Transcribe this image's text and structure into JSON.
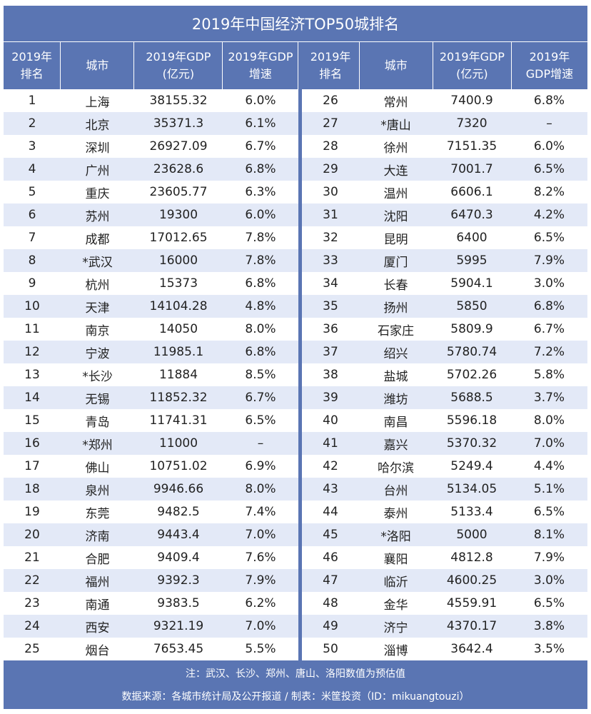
{
  "title": "2019年中国经济TOP50城排名",
  "headers": [
    "2019年\n排名",
    "城市",
    "2019年GDP\n(亿元)",
    "2019年GDP\n增速",
    "2019年\n排名",
    "城市",
    "2019年GDP\n(亿元)",
    "2019年\nGDP增速"
  ],
  "rows": [
    {
      "left": [
        "1",
        "上海",
        "38155.32",
        "6.0%"
      ],
      "right": [
        "26",
        "常州",
        "7400.9",
        "6.8%"
      ]
    },
    {
      "left": [
        "2",
        "北京",
        "35371.3",
        "6.1%"
      ],
      "right": [
        "27",
        "*唐山",
        "7320",
        "–"
      ]
    },
    {
      "left": [
        "3",
        "深圳",
        "26927.09",
        "6.7%"
      ],
      "right": [
        "28",
        "徐州",
        "7151.35",
        "6.0%"
      ]
    },
    {
      "left": [
        "4",
        "广州",
        "23628.6",
        "6.8%"
      ],
      "right": [
        "29",
        "大连",
        "7001.7",
        "6.5%"
      ]
    },
    {
      "left": [
        "5",
        "重庆",
        "23605.77",
        "6.3%"
      ],
      "right": [
        "30",
        "温州",
        "6606.1",
        "8.2%"
      ]
    },
    {
      "left": [
        "6",
        "苏州",
        "19300",
        "6.0%"
      ],
      "right": [
        "31",
        "沈阳",
        "6470.3",
        "4.2%"
      ]
    },
    {
      "left": [
        "7",
        "成都",
        "17012.65",
        "7.8%"
      ],
      "right": [
        "32",
        "昆明",
        "6400",
        "6.5%"
      ]
    },
    {
      "left": [
        "8",
        "*武汉",
        "16000",
        "7.8%"
      ],
      "right": [
        "33",
        "厦门",
        "5995",
        "7.9%"
      ]
    },
    {
      "left": [
        "9",
        "杭州",
        "15373",
        "6.8%"
      ],
      "right": [
        "34",
        "长春",
        "5904.1",
        "3.0%"
      ]
    },
    {
      "left": [
        "10",
        "天津",
        "14104.28",
        "4.8%"
      ],
      "right": [
        "35",
        "扬州",
        "5850",
        "6.8%"
      ]
    },
    {
      "left": [
        "11",
        "南京",
        "14050",
        "8.0%"
      ],
      "right": [
        "36",
        "石家庄",
        "5809.9",
        "6.7%"
      ]
    },
    {
      "left": [
        "12",
        "宁波",
        "11985.1",
        "6.8%"
      ],
      "right": [
        "37",
        "绍兴",
        "5780.74",
        "7.2%"
      ]
    },
    {
      "left": [
        "13",
        "*长沙",
        "11884",
        "8.5%"
      ],
      "right": [
        "38",
        "盐城",
        "5702.26",
        "5.8%"
      ]
    },
    {
      "left": [
        "14",
        "无锡",
        "11852.32",
        "6.7%"
      ],
      "right": [
        "39",
        "潍坊",
        "5688.5",
        "3.7%"
      ]
    },
    {
      "left": [
        "15",
        "青岛",
        "11741.31",
        "6.5%"
      ],
      "right": [
        "40",
        "南昌",
        "5596.18",
        "8.0%"
      ]
    },
    {
      "left": [
        "16",
        "*郑州",
        "11000",
        "–"
      ],
      "right": [
        "41",
        "嘉兴",
        "5370.32",
        "7.0%"
      ]
    },
    {
      "left": [
        "17",
        "佛山",
        "10751.02",
        "6.9%"
      ],
      "right": [
        "42",
        "哈尔滨",
        "5249.4",
        "4.4%"
      ]
    },
    {
      "left": [
        "18",
        "泉州",
        "9946.66",
        "8.0%"
      ],
      "right": [
        "43",
        "台州",
        "5134.05",
        "5.1%"
      ]
    },
    {
      "left": [
        "19",
        "东莞",
        "9482.5",
        "7.4%"
      ],
      "right": [
        "44",
        "泰州",
        "5133.4",
        "6.5%"
      ]
    },
    {
      "left": [
        "20",
        "济南",
        "9443.4",
        "7.0%"
      ],
      "right": [
        "45",
        "*洛阳",
        "5000",
        "8.1%"
      ]
    },
    {
      "left": [
        "21",
        "合肥",
        "9409.4",
        "7.6%"
      ],
      "right": [
        "46",
        "襄阳",
        "4812.8",
        "7.9%"
      ]
    },
    {
      "left": [
        "22",
        "福州",
        "9392.3",
        "7.9%"
      ],
      "right": [
        "47",
        "临沂",
        "4600.25",
        "3.0%"
      ]
    },
    {
      "left": [
        "23",
        "南通",
        "9383.5",
        "6.2%"
      ],
      "right": [
        "48",
        "金华",
        "4559.91",
        "6.5%"
      ]
    },
    {
      "left": [
        "24",
        "西安",
        "9321.19",
        "7.0%"
      ],
      "right": [
        "49",
        "济宁",
        "4370.17",
        "3.8%"
      ]
    },
    {
      "left": [
        "25",
        "烟台",
        "7653.45",
        "5.5%"
      ],
      "right": [
        "50",
        "淄博",
        "3642.4",
        "3.5%"
      ]
    }
  ],
  "footer": {
    "note": "注：武汉、长沙、郑州、唐山、洛阳数值为预估值",
    "source": "数据来源：各城市统计局及公开报道 / 制表：米筐投资（ID：mikuangtouzi）"
  },
  "colors": {
    "header_bg": "#5a75b3",
    "stripe": "#e3e9f7",
    "text": "#222222"
  }
}
